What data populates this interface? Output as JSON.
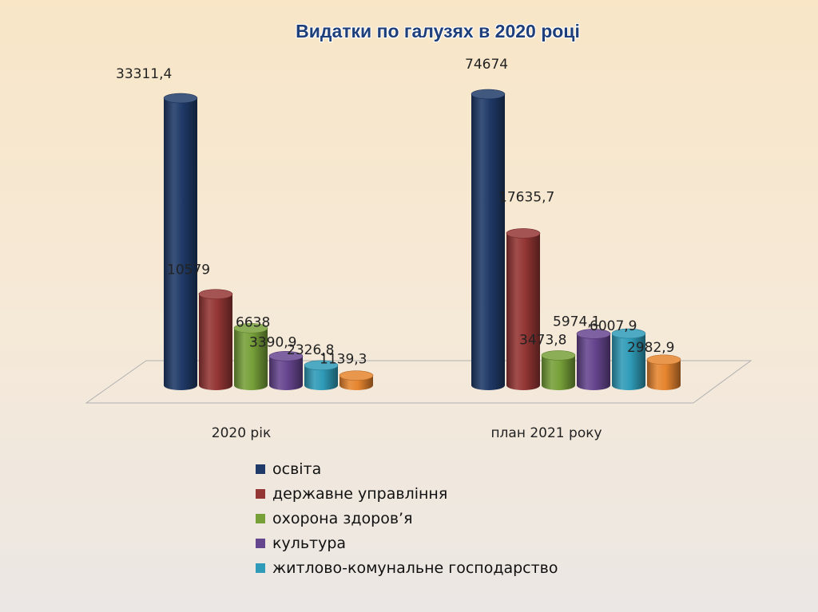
{
  "chart_data": {
    "type": "bar",
    "title": "Видатки по галузях в 2020 році",
    "categories": [
      "2020 рік",
      "план 2021 року"
    ],
    "series": [
      {
        "name": "освіта",
        "color": "#1f3a68",
        "values": [
          33311.4,
          74674
        ],
        "labels": [
          "33311,4",
          "74674"
        ]
      },
      {
        "name": "державне управління",
        "color": "#943634",
        "values": [
          10579,
          17635.7
        ],
        "labels": [
          "10579",
          "17635,7"
        ]
      },
      {
        "name": "охорона здоров’я",
        "color": "#77a039",
        "values": [
          6638,
          3473.8
        ],
        "labels": [
          "6638",
          "3473,8"
        ]
      },
      {
        "name": "культура",
        "color": "#66458f",
        "values": [
          3390.9,
          5974.1
        ],
        "labels": [
          "3390,9",
          "5974,1"
        ]
      },
      {
        "name": "житлово-комунальне господарство",
        "color": "#2f9bb8",
        "values": [
          2326.8,
          6007.9
        ],
        "labels": [
          "2326,8",
          "6007,9"
        ]
      },
      {
        "name": "",
        "color": "#e6852f",
        "values": [
          1139.3,
          2982.9
        ],
        "labels": [
          "1139,3",
          "2982,9"
        ]
      }
    ],
    "grid": false,
    "legend_position": "bottom",
    "three_d": true
  }
}
